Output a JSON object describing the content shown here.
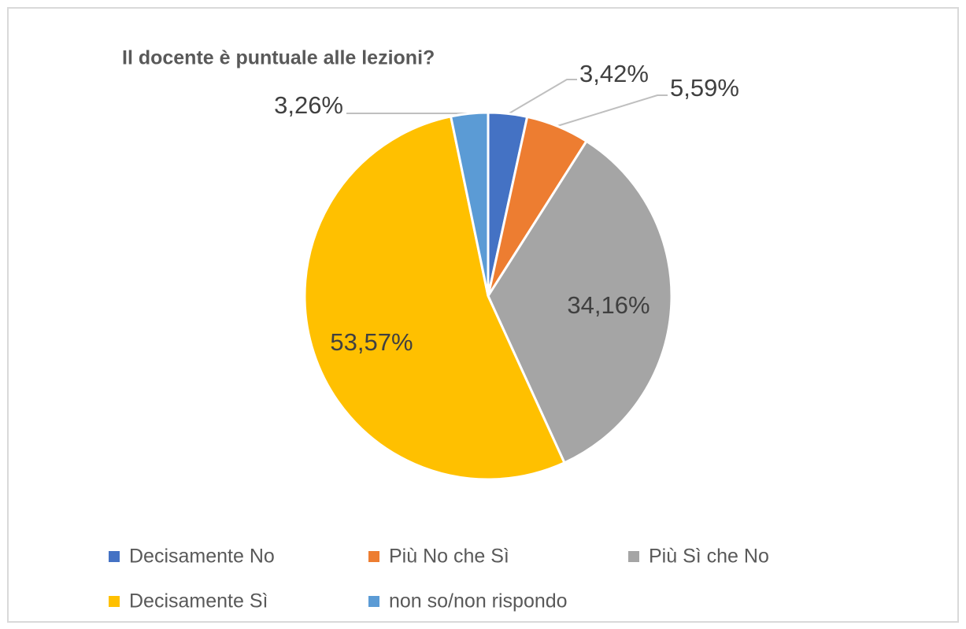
{
  "chart_data": {
    "type": "pie",
    "title": "Il docente è puntuale alle lezioni?",
    "categories": [
      "Decisamente No",
      "Più No che Sì",
      "Più Sì che No",
      "Decisamente Sì",
      "non so/non rispondo"
    ],
    "values": [
      3.42,
      5.59,
      34.16,
      53.57,
      3.26
    ],
    "value_labels": [
      "3,42%",
      "5,59%",
      "34,16%",
      "53,57%",
      "3,26%"
    ],
    "colors": [
      "#4472c4",
      "#ed7d31",
      "#a5a5a5",
      "#ffc000",
      "#5b9bd5"
    ],
    "legend": "bottom"
  }
}
